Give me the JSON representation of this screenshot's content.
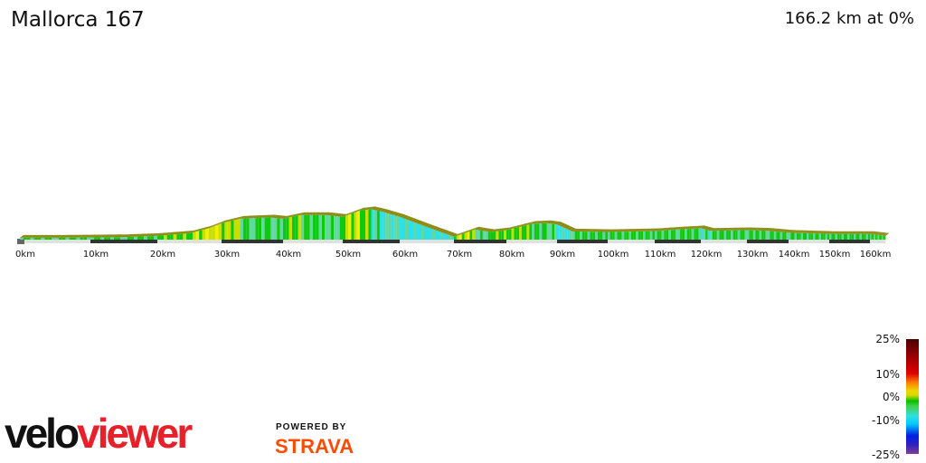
{
  "header": {
    "title": "Mallorca 167",
    "summary": "166.2 km at 0%"
  },
  "chart_data": {
    "type": "area",
    "title": "Mallorca 167",
    "x_unit": "km",
    "x_ticks": [
      "0km",
      "10km",
      "20km",
      "30km",
      "40km",
      "50km",
      "60km",
      "70km",
      "80km",
      "90km",
      "100km",
      "110km",
      "120km",
      "130km",
      "140km",
      "150km",
      "160km"
    ],
    "distance_km": [
      0,
      5,
      10,
      15,
      20,
      25,
      28,
      30,
      33,
      35,
      38,
      40,
      43,
      47,
      50,
      53,
      55,
      57,
      60,
      65,
      70,
      74,
      77,
      80,
      85,
      88,
      90,
      93,
      100,
      110,
      115,
      120,
      122,
      130,
      135,
      140,
      150,
      160,
      166.2
    ],
    "elevation": [
      30,
      30,
      35,
      40,
      60,
      100,
      180,
      260,
      330,
      340,
      350,
      330,
      390,
      390,
      360,
      460,
      480,
      440,
      360,
      200,
      45,
      160,
      120,
      150,
      250,
      260,
      240,
      130,
      120,
      135,
      160,
      180,
      140,
      150,
      140,
      110,
      90,
      90,
      60
    ],
    "grade_legend": {
      "ticks": [
        "25%",
        "10%",
        "0%",
        "-10%",
        "-25%"
      ],
      "range": [
        -25,
        25
      ]
    },
    "colors": {
      "edge": "#8a8a10",
      "track_dark": "#333333",
      "track_light": "#e0e0e0"
    }
  },
  "branding": {
    "velo": "velo",
    "viewer": "viewer",
    "powered": "POWERED BY",
    "strava": "STRAVA"
  }
}
